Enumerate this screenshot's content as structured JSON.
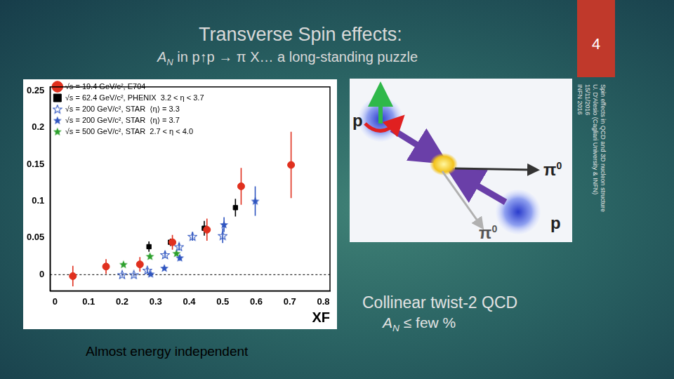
{
  "slide": {
    "title": "Transverse Spin effects:",
    "subtitle": {
      "symbol": "A",
      "symbol_sub": "N",
      "text": "in p↑p → π X… a long-standing puzzle"
    },
    "page_number": "4",
    "footer": [
      "Spin effects in QCD and 3D nucleon structure",
      "U. D'Alesio (Cagliari University & INFN)",
      "15/11/2016",
      "INFN 2016"
    ],
    "diagram": {
      "labels": [
        {
          "text": "p"
        },
        {
          "text": "π",
          "sup": "0"
        },
        {
          "text": "p"
        },
        {
          "text": "π",
          "sup": "0"
        }
      ]
    },
    "notes": [
      {
        "text": "Collinear twist-2 QCD"
      },
      {
        "symbol": "A",
        "symbol_sub": "N",
        "text": "≤ few %"
      }
    ],
    "caption": "Almost energy independent"
  },
  "chart_data": {
    "type": "scatter",
    "xlabel": "XF",
    "xlim": [
      -0.015,
      0.82
    ],
    "xticks": [
      0,
      0.1,
      0.2,
      0.3,
      0.4,
      0.5,
      0.6,
      0.7,
      0.8
    ],
    "ylim": [
      -0.022,
      0.255
    ],
    "yticks": [
      0,
      0.05,
      0.1,
      0.15,
      0.2,
      0.25
    ],
    "grid": false,
    "legend": "upper left",
    "reference_lines": [
      {
        "y": 0,
        "line_style": "dashed"
      }
    ],
    "series": [
      {
        "name": "√s = 19.4 GeV/c², E704",
        "color": "#e0301e",
        "marker": "circle",
        "x": [
          0.053,
          0.152,
          0.253,
          0.35,
          0.453,
          0.555,
          0.704
        ],
        "values": [
          -0.002,
          0.011,
          0.014,
          0.044,
          0.061,
          0.12,
          0.149
        ],
        "errors": [
          0.014,
          0.01,
          0.01,
          0.01,
          0.015,
          0.025,
          0.045
        ]
      },
      {
        "name": "√s = 62.4 GeV/c², PHENIX  3.2 < η < 3.7",
        "color": "#000000",
        "marker": "square",
        "x": [
          0.28,
          0.344,
          0.445,
          0.538
        ],
        "values": [
          0.038,
          0.044,
          0.063,
          0.091
        ],
        "errors": [
          0.007,
          0.005,
          0.01,
          0.012
        ]
      },
      {
        "name": "√s = 200 GeV/c², STAR  ⟨η⟩ = 3.3",
        "color": "#2f55c0",
        "marker": "star_open",
        "x": [
          0.2,
          0.235,
          0.275,
          0.328,
          0.37,
          0.41,
          0.5
        ],
        "values": [
          0.0,
          0.0,
          0.006,
          0.027,
          0.038,
          0.052,
          0.053
        ],
        "errors": [
          0.002,
          0.002,
          0.003,
          0.004,
          0.005,
          0.006,
          0.01
        ]
      },
      {
        "name": "√s = 200 GeV/c², STAR  ⟨η⟩ = 3.7",
        "color": "#2f55c0",
        "marker": "star",
        "x": [
          0.285,
          0.326,
          0.372,
          0.504,
          0.597
        ],
        "values": [
          0.001,
          0.009,
          0.023,
          0.068,
          0.1
        ],
        "errors": [
          0.002,
          0.003,
          0.004,
          0.01,
          0.02
        ]
      },
      {
        "name": "√s = 500 GeV/c², STAR  2.7 < η < 4.0",
        "color": "#2ca02c",
        "marker": "star",
        "x": [
          0.204,
          0.283,
          0.362
        ],
        "values": [
          0.014,
          0.025,
          0.029
        ],
        "errors": [
          0.002,
          0.003,
          0.003
        ]
      }
    ]
  }
}
